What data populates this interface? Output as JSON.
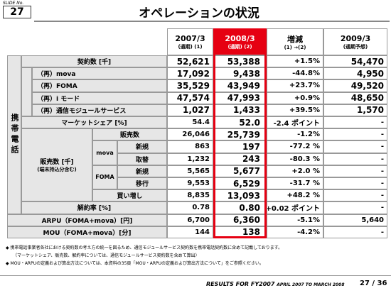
{
  "slide_no_label": "SLIDE No.",
  "slide_no": "27",
  "title": "オペレーションの状況",
  "table": {
    "header": [
      {
        "year": "2007/3",
        "sub": "(通期) (1)"
      },
      {
        "year": "2008/3",
        "sub": "(通期) (2)"
      },
      {
        "year": "増減",
        "sub": "(1) →(2)"
      },
      {
        "year": "2009/3",
        "sub": "(通期予想)"
      }
    ],
    "group_label": "携帯電話",
    "sales_label": "販売数 [千]",
    "sales_sub": "(端末持込分含む)",
    "mova": "mova",
    "foma": "FOMA",
    "rows": [
      {
        "label": "契約数 [千]",
        "values": [
          "52,621",
          "53,388",
          "+1.5%",
          "54,470"
        ]
      },
      {
        "label": "（再）mova",
        "values": [
          "17,092",
          "9,438",
          "-44.8%",
          "4,950"
        ]
      },
      {
        "label": "（再）FOMA",
        "values": [
          "35,529",
          "43,949",
          "+23.7%",
          "49,520"
        ]
      },
      {
        "label": "（再）i モード",
        "values": [
          "47,574",
          "47,993",
          "+0.9%",
          "48,650"
        ]
      },
      {
        "label": "（再）通信モジュールサービス",
        "values": [
          "1,027",
          "1,433",
          "+39.5%",
          "1,570"
        ]
      },
      {
        "label": "マーケットシェア [%]",
        "values": [
          "54.4",
          "52.0",
          "-2.4 ポイント",
          "-"
        ]
      },
      {
        "label": "販売数",
        "values": [
          "26,046",
          "25,739",
          "-1.2%",
          "-"
        ]
      },
      {
        "label": "新規",
        "values": [
          "863",
          "197",
          "-77.2 %",
          "-"
        ]
      },
      {
        "label": "取替",
        "values": [
          "1,232",
          "243",
          "-80.3 %",
          "-"
        ]
      },
      {
        "label": "新規",
        "values": [
          "5,565",
          "5,677",
          "+2.0 %",
          "-"
        ]
      },
      {
        "label": "移行",
        "values": [
          "9,553",
          "6,529",
          "-31.7 %",
          "-"
        ]
      },
      {
        "label": "買い増し",
        "values": [
          "8,835",
          "13,093",
          "+48.2 %",
          "-"
        ]
      },
      {
        "label": "解約率 [%]",
        "values": [
          "0.78",
          "0.80",
          "+0.02 ポイント",
          "-"
        ]
      },
      {
        "label": "ARPU（FOMA+mova）[円]",
        "values": [
          "6,700",
          "6,360",
          "-5.1%",
          "5,640"
        ]
      },
      {
        "label": "MOU（FOMA+mova）[分]",
        "values": [
          "144",
          "138",
          "-4.2%",
          "-"
        ]
      }
    ]
  },
  "notes": [
    "◆ 携帯電話事業者各社における契約数の考え方の統一を図るため、通信モジュールサービス契約数を携帯電話契約数に含めて記載しております。",
    "（マーケットシェア、販売数、解約率については、通信モジュールサービス契約数を含めて算出）",
    "◆ MOU・ARPUの定義および算出方法については、本資料の35頁「MOU・ARPUの定義および算出方法について」をご参照ください。"
  ],
  "footer": {
    "title": "RESULTS FOR FY2007",
    "period": "APRIL 2007 TO MARCH 2008",
    "page": "27 / 36"
  }
}
